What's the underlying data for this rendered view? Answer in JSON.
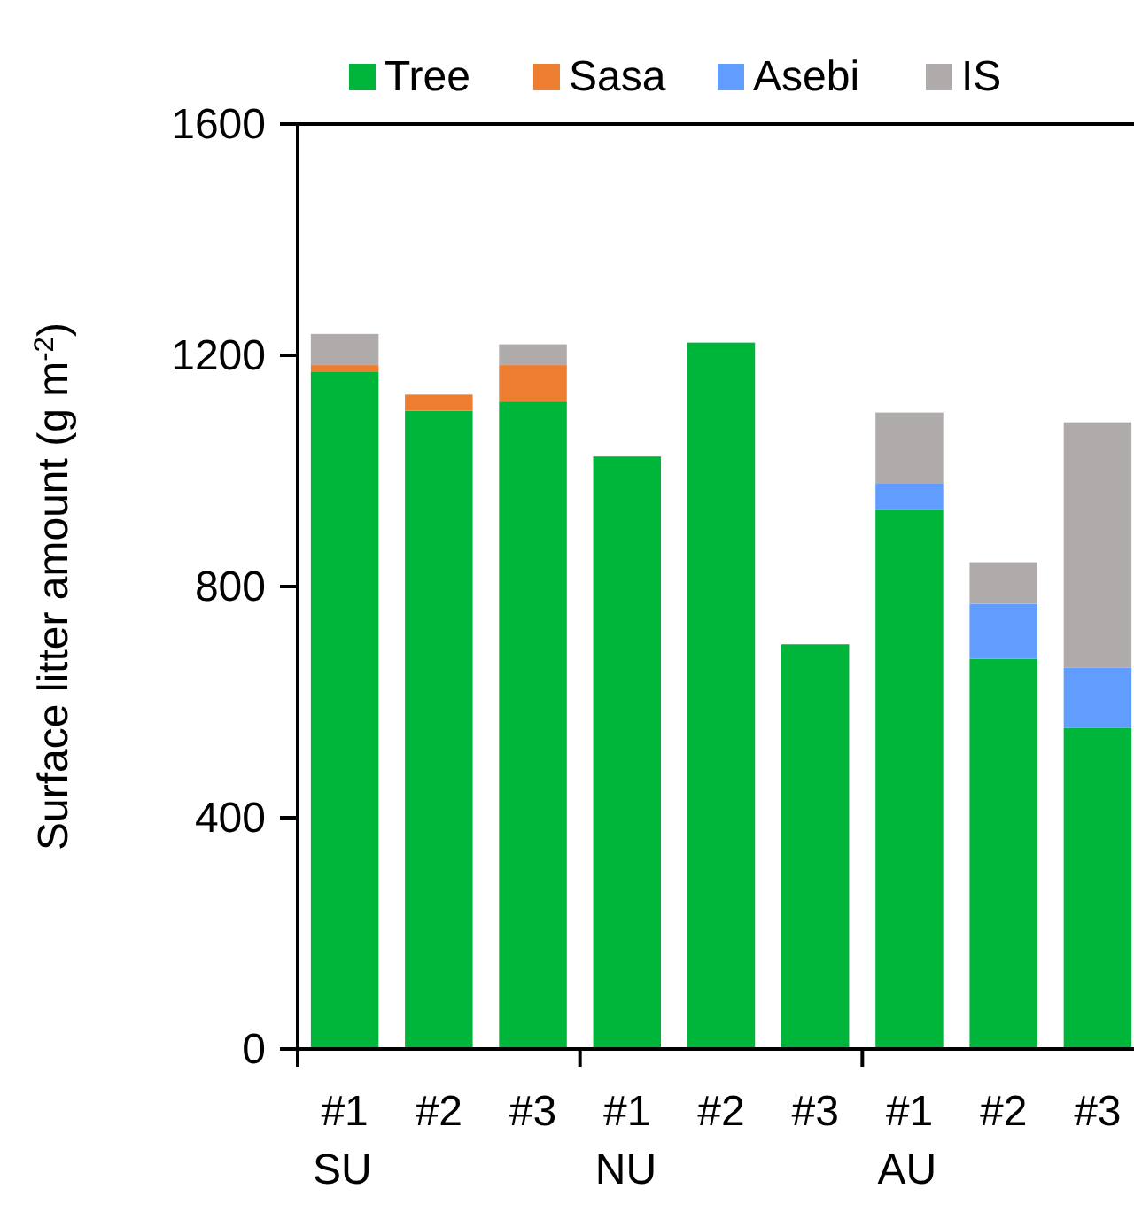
{
  "chart_data": {
    "type": "bar",
    "stacked": true,
    "ylabel": "Surface litter amount (g m$^{-2}$)",
    "categories": [
      "#1",
      "#2",
      "#3",
      "#1",
      "#2",
      "#3",
      "#1",
      "#2",
      "#3"
    ],
    "series": [
      {
        "name": "Tree",
        "color": "#00b63a",
        "values": [
          1172,
          1104,
          1120,
          1025,
          1222,
          700,
          932,
          675,
          555
        ]
      },
      {
        "name": "Sasa",
        "color": "#ed7d31",
        "values": [
          11,
          28,
          63,
          0,
          0,
          0,
          0,
          0,
          0
        ]
      },
      {
        "name": "Asebi",
        "color": "#619cff",
        "values": [
          0,
          0,
          0,
          0,
          0,
          0,
          47,
          95,
          105
        ]
      },
      {
        "name": "IS",
        "color": "#afabab",
        "values": [
          54,
          0,
          36,
          0,
          0,
          0,
          122,
          72,
          424
        ]
      }
    ],
    "ylim": [
      0,
      1600
    ],
    "yticks": [
      0,
      400,
      800,
      1200,
      1600
    ],
    "annotations": [
      "SU",
      "NU",
      "AU"
    ],
    "legend": "top right"
  }
}
